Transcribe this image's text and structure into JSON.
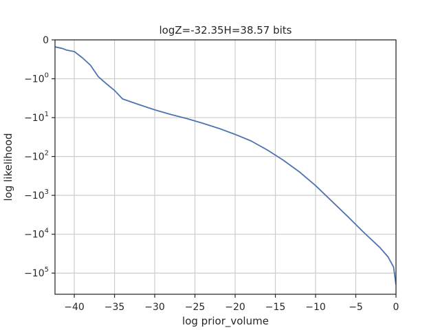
{
  "chart_data": {
    "type": "line",
    "title": "logZ=-32.35H=38.57 bits",
    "xlabel": "log prior_volume",
    "ylabel": "log likelihood",
    "xlim": [
      -42.4,
      0
    ],
    "yscale": "symlog",
    "ylim": [
      0,
      -350000
    ],
    "grid": true,
    "line_color": "#4c72b0",
    "x_ticks": [
      -40,
      -35,
      -30,
      -25,
      -20,
      -15,
      -10,
      -5,
      0
    ],
    "x_tick_labels": [
      "−40",
      "−35",
      "−30",
      "−25",
      "−20",
      "−15",
      "−10",
      "−5",
      "0"
    ],
    "y_ticks": [
      {
        "value": 0,
        "base": "0",
        "exp": ""
      },
      {
        "value": -1,
        "base": "−10",
        "exp": "0"
      },
      {
        "value": -10,
        "base": "−10",
        "exp": "1"
      },
      {
        "value": -100,
        "base": "−10",
        "exp": "2"
      },
      {
        "value": -1000,
        "base": "−10",
        "exp": "3"
      },
      {
        "value": -10000,
        "base": "−10",
        "exp": "4"
      },
      {
        "value": -100000,
        "base": "−10",
        "exp": "5"
      }
    ],
    "series": [
      {
        "x": [
          -42.4,
          -41.5,
          -41.0,
          -40.0,
          -39.5,
          -39.0,
          -38.0,
          -37.0,
          -36.0,
          -35.0,
          -34.0,
          -32.0,
          -30.0,
          -28.0,
          -26.0,
          -24.0,
          -22.0,
          -20.0,
          -18.0,
          -16.0,
          -14.0,
          -12.0,
          -10.0,
          -8.0,
          -6.0,
          -4.0,
          -2.0,
          -1.0,
          -0.3,
          0.0
        ],
        "y": [
          -0.18,
          -0.22,
          -0.26,
          -0.3,
          -0.38,
          -0.46,
          -0.65,
          -0.95,
          -1.35,
          -2.0,
          -3.3,
          -4.6,
          -6.3,
          -8.3,
          -10.6,
          -14.0,
          -19.0,
          -27.0,
          -40.0,
          -68.0,
          -125.0,
          -250.0,
          -560.0,
          -1400.0,
          -3500.0,
          -9000.0,
          -22000.0,
          -38000.0,
          -70000.0,
          -200000.0
        ]
      }
    ]
  }
}
